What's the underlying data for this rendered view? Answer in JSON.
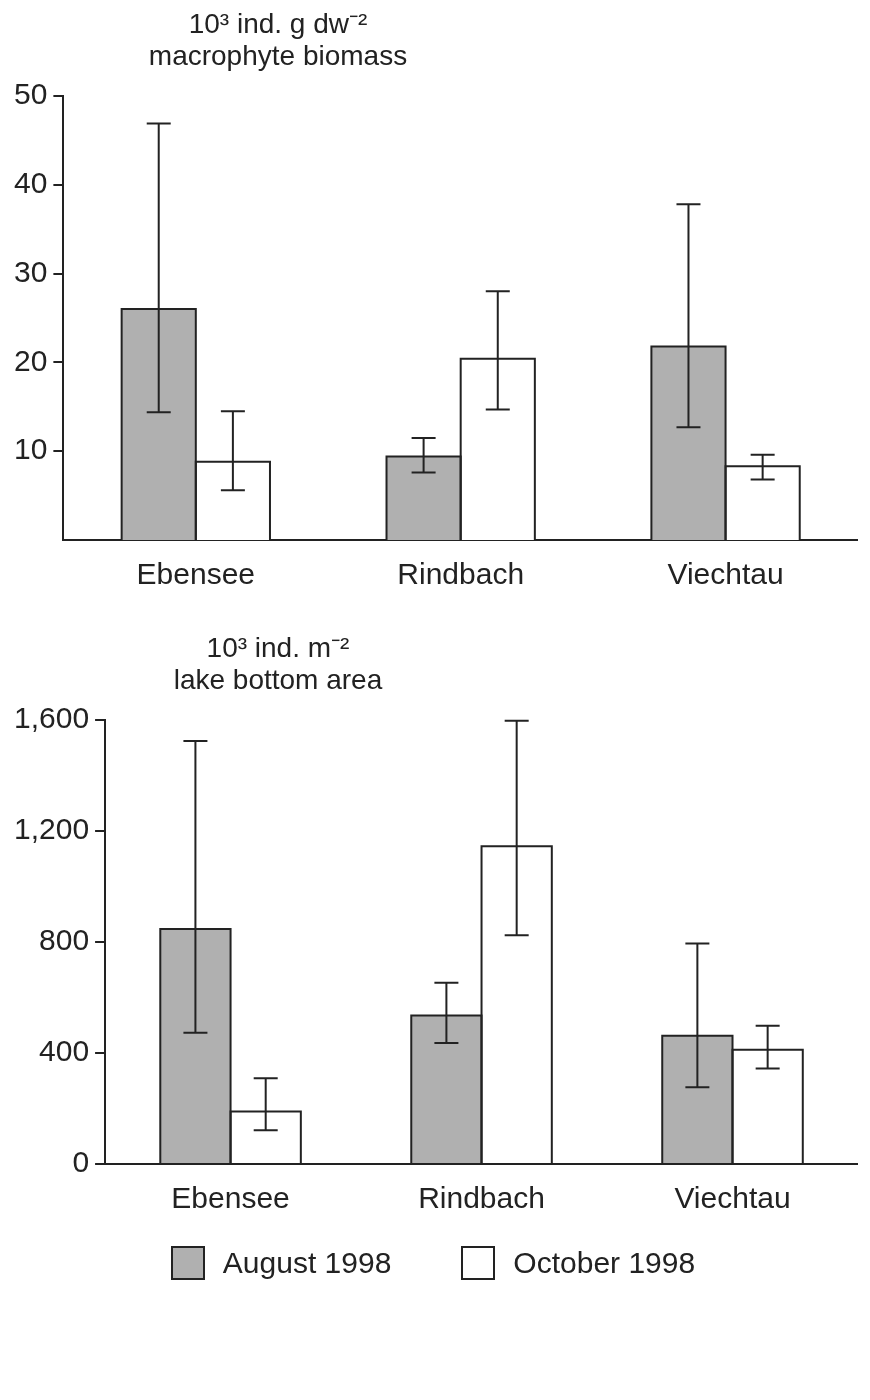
{
  "chart_data": [
    {
      "type": "bar",
      "title": "10³ ind. g dw⁻²",
      "subtitle": "macrophyte biomass",
      "categories": [
        "Ebensee",
        "Rindbach",
        "Viechtau"
      ],
      "ylim": [
        0,
        50
      ],
      "yticks": [
        10,
        20,
        30,
        40,
        50
      ],
      "grid": false,
      "legend": false,
      "series": [
        {
          "color": "#b0b0b0",
          "values": [
            26.0,
            9.4,
            21.8
          ],
          "errors": [
            [
              14.4,
              46.9
            ],
            [
              7.6,
              11.5
            ],
            [
              12.7,
              37.8
            ]
          ]
        },
        {
          "color": "#ffffff",
          "values": [
            8.8,
            20.4,
            8.3
          ],
          "errors": [
            [
              5.6,
              14.5
            ],
            [
              14.7,
              28.0
            ],
            [
              6.8,
              9.6
            ]
          ]
        }
      ]
    },
    {
      "type": "bar",
      "title": "10³ ind. m⁻²",
      "subtitle": "lake bottom area",
      "categories": [
        "Ebensee",
        "Rindbach",
        "Viechtau"
      ],
      "ylim": [
        0,
        1600
      ],
      "yticks": [
        0,
        400,
        800,
        {
          "value": 1200,
          "label": "1,200"
        },
        {
          "value": 1600,
          "label": "1,600"
        }
      ],
      "grid": false,
      "legend": "bottom",
      "series": [
        {
          "name": "August 1998",
          "color": "#b0b0b0",
          "values": [
            847,
            535,
            462
          ],
          "errors": [
            [
              473,
              1524
            ],
            [
              436,
              653
            ],
            [
              277,
              795
            ]
          ]
        },
        {
          "name": "October 1998",
          "color": "#ffffff",
          "values": [
            189,
            1145,
            412
          ],
          "errors": [
            [
              122,
              309
            ],
            [
              824,
              1597
            ],
            [
              344,
              498
            ]
          ]
        }
      ]
    }
  ]
}
